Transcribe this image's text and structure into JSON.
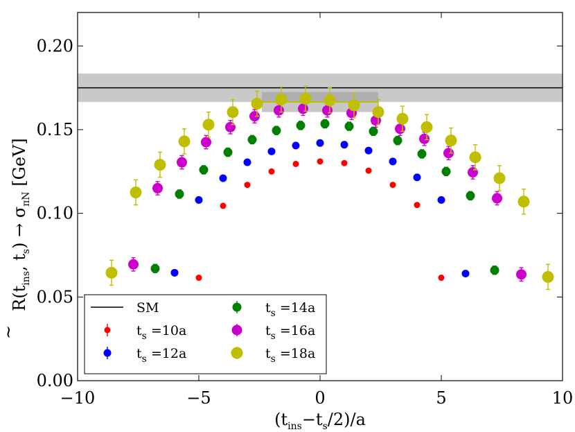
{
  "chart_data": {
    "type": "scatter",
    "xlabel": {
      "base": "(t",
      "sub1": "ins",
      "mid": "−t",
      "sub2": "s",
      "tail": "/2)/a"
    },
    "ylabel": {
      "p1": "R(t",
      "s1": "ins",
      "p2": ", t",
      "s2": "s",
      "p3": ") → σ",
      "s3": "πN",
      "p4": " [GeV]",
      "accent": "~"
    },
    "xlim": [
      -10,
      10
    ],
    "ylim": [
      0.0,
      0.22
    ],
    "x_ticks": [
      -10,
      -5,
      0,
      5,
      10
    ],
    "x_tick_labels": [
      "−10",
      "−5",
      "0",
      "5",
      "10"
    ],
    "y_ticks": [
      0.0,
      0.05,
      0.1,
      0.15,
      0.2
    ],
    "y_tick_labels": [
      "0.00",
      "0.05",
      "0.10",
      "0.15",
      "0.20"
    ],
    "grid": false,
    "legend_placement": "bottom-left",
    "sm_band": {
      "name": "SM",
      "value": 0.175,
      "low": 0.1665,
      "high": 0.1835,
      "color": "#000000",
      "band_color": "#bfbfbf"
    },
    "fit_band": {
      "x_range": [
        -2.4,
        2.4
      ],
      "value": 0.1665,
      "low": 0.1605,
      "high": 0.1725,
      "color": "#999999"
    },
    "series": [
      {
        "name": "t_s =10a",
        "label_base": "t",
        "label_sub": "s",
        "label_rest": " =10a",
        "color": "#ff0000",
        "size": 4.5,
        "points": [
          {
            "x": -5,
            "y": 0.0615,
            "err": 0.001
          },
          {
            "x": -4,
            "y": 0.1045,
            "err": 0.001
          },
          {
            "x": -3,
            "y": 0.117,
            "err": 0.001
          },
          {
            "x": -2,
            "y": 0.125,
            "err": 0.001
          },
          {
            "x": -1,
            "y": 0.1295,
            "err": 0.001
          },
          {
            "x": 0,
            "y": 0.131,
            "err": 0.001
          },
          {
            "x": 1,
            "y": 0.13,
            "err": 0.001
          },
          {
            "x": 2,
            "y": 0.1255,
            "err": 0.001
          },
          {
            "x": 3,
            "y": 0.117,
            "err": 0.001
          },
          {
            "x": 4,
            "y": 0.105,
            "err": 0.001
          },
          {
            "x": 5,
            "y": 0.0615,
            "err": 0.001
          }
        ]
      },
      {
        "name": "t_s =12a",
        "label_base": "t",
        "label_sub": "s",
        "label_rest": " =12a",
        "color": "#0000ff",
        "size": 5.5,
        "points": [
          {
            "x": -6,
            "y": 0.0645,
            "err": 0.0015
          },
          {
            "x": -5,
            "y": 0.108,
            "err": 0.0015
          },
          {
            "x": -4,
            "y": 0.121,
            "err": 0.0015
          },
          {
            "x": -3,
            "y": 0.1305,
            "err": 0.0015
          },
          {
            "x": -2,
            "y": 0.137,
            "err": 0.0015
          },
          {
            "x": -1,
            "y": 0.1405,
            "err": 0.0015
          },
          {
            "x": 0,
            "y": 0.142,
            "err": 0.0015
          },
          {
            "x": 1,
            "y": 0.141,
            "err": 0.0015
          },
          {
            "x": 2,
            "y": 0.1375,
            "err": 0.0015
          },
          {
            "x": 3,
            "y": 0.131,
            "err": 0.0015
          },
          {
            "x": 4,
            "y": 0.1215,
            "err": 0.0015
          },
          {
            "x": 5,
            "y": 0.108,
            "err": 0.0015
          },
          {
            "x": 6,
            "y": 0.064,
            "err": 0.0015
          }
        ]
      },
      {
        "name": "t_s =14a",
        "label_base": "t",
        "label_sub": "s",
        "label_rest": " =14a",
        "color": "#008000",
        "size": 6.5,
        "points": [
          {
            "x": -6.8,
            "y": 0.067,
            "err": 0.0025
          },
          {
            "x": -5.8,
            "y": 0.1115,
            "err": 0.0025
          },
          {
            "x": -4.8,
            "y": 0.126,
            "err": 0.0025
          },
          {
            "x": -3.8,
            "y": 0.1365,
            "err": 0.0025
          },
          {
            "x": -2.8,
            "y": 0.144,
            "err": 0.0025
          },
          {
            "x": -1.8,
            "y": 0.1495,
            "err": 0.0025
          },
          {
            "x": -0.8,
            "y": 0.1525,
            "err": 0.0025
          },
          {
            "x": 0.2,
            "y": 0.1535,
            "err": 0.0025
          },
          {
            "x": 1.2,
            "y": 0.152,
            "err": 0.0025
          },
          {
            "x": 2.2,
            "y": 0.149,
            "err": 0.0025
          },
          {
            "x": 3.2,
            "y": 0.1435,
            "err": 0.0025
          },
          {
            "x": 4.2,
            "y": 0.1355,
            "err": 0.0025
          },
          {
            "x": 5.2,
            "y": 0.125,
            "err": 0.0025
          },
          {
            "x": 6.2,
            "y": 0.1105,
            "err": 0.0025
          },
          {
            "x": 7.2,
            "y": 0.066,
            "err": 0.0025
          }
        ]
      },
      {
        "name": "t_s =16a",
        "label_base": "t",
        "label_sub": "s",
        "label_rest": " =16a",
        "color": "#cc00cc",
        "size": 7.5,
        "points": [
          {
            "x": -7.7,
            "y": 0.0695,
            "err": 0.004
          },
          {
            "x": -6.7,
            "y": 0.115,
            "err": 0.004
          },
          {
            "x": -5.7,
            "y": 0.1305,
            "err": 0.004
          },
          {
            "x": -4.7,
            "y": 0.1425,
            "err": 0.004
          },
          {
            "x": -3.7,
            "y": 0.1515,
            "err": 0.004
          },
          {
            "x": -2.7,
            "y": 0.158,
            "err": 0.004
          },
          {
            "x": -1.7,
            "y": 0.1615,
            "err": 0.004
          },
          {
            "x": -0.7,
            "y": 0.1625,
            "err": 0.004
          },
          {
            "x": 0.3,
            "y": 0.1615,
            "err": 0.004
          },
          {
            "x": 1.3,
            "y": 0.16,
            "err": 0.004
          },
          {
            "x": 2.3,
            "y": 0.1555,
            "err": 0.004
          },
          {
            "x": 3.3,
            "y": 0.1505,
            "err": 0.004
          },
          {
            "x": 4.3,
            "y": 0.1445,
            "err": 0.004
          },
          {
            "x": 5.3,
            "y": 0.136,
            "err": 0.004
          },
          {
            "x": 6.3,
            "y": 0.1245,
            "err": 0.004
          },
          {
            "x": 7.3,
            "y": 0.109,
            "err": 0.004
          },
          {
            "x": 8.3,
            "y": 0.0635,
            "err": 0.004
          }
        ]
      },
      {
        "name": "t_s =18a",
        "label_base": "t",
        "label_sub": "s",
        "label_rest": " =18a",
        "color": "#bfbf00",
        "size": 8.5,
        "points": [
          {
            "x": -8.6,
            "y": 0.0645,
            "err": 0.0075
          },
          {
            "x": -7.6,
            "y": 0.1125,
            "err": 0.0075
          },
          {
            "x": -6.6,
            "y": 0.129,
            "err": 0.0075
          },
          {
            "x": -5.6,
            "y": 0.143,
            "err": 0.0075
          },
          {
            "x": -4.6,
            "y": 0.153,
            "err": 0.0075
          },
          {
            "x": -3.6,
            "y": 0.1605,
            "err": 0.0075
          },
          {
            "x": -2.6,
            "y": 0.1655,
            "err": 0.0075
          },
          {
            "x": -1.6,
            "y": 0.168,
            "err": 0.0075
          },
          {
            "x": -0.6,
            "y": 0.1685,
            "err": 0.0075
          },
          {
            "x": 0.4,
            "y": 0.1675,
            "err": 0.0075
          },
          {
            "x": 1.4,
            "y": 0.1645,
            "err": 0.0075
          },
          {
            "x": 2.4,
            "y": 0.1605,
            "err": 0.0075
          },
          {
            "x": 3.4,
            "y": 0.1565,
            "err": 0.0075
          },
          {
            "x": 4.4,
            "y": 0.1515,
            "err": 0.0075
          },
          {
            "x": 5.4,
            "y": 0.1435,
            "err": 0.0075
          },
          {
            "x": 6.4,
            "y": 0.1335,
            "err": 0.0075
          },
          {
            "x": 7.4,
            "y": 0.121,
            "err": 0.0075
          },
          {
            "x": 8.4,
            "y": 0.107,
            "err": 0.0075
          },
          {
            "x": 9.4,
            "y": 0.062,
            "err": 0.0075
          }
        ]
      }
    ]
  }
}
